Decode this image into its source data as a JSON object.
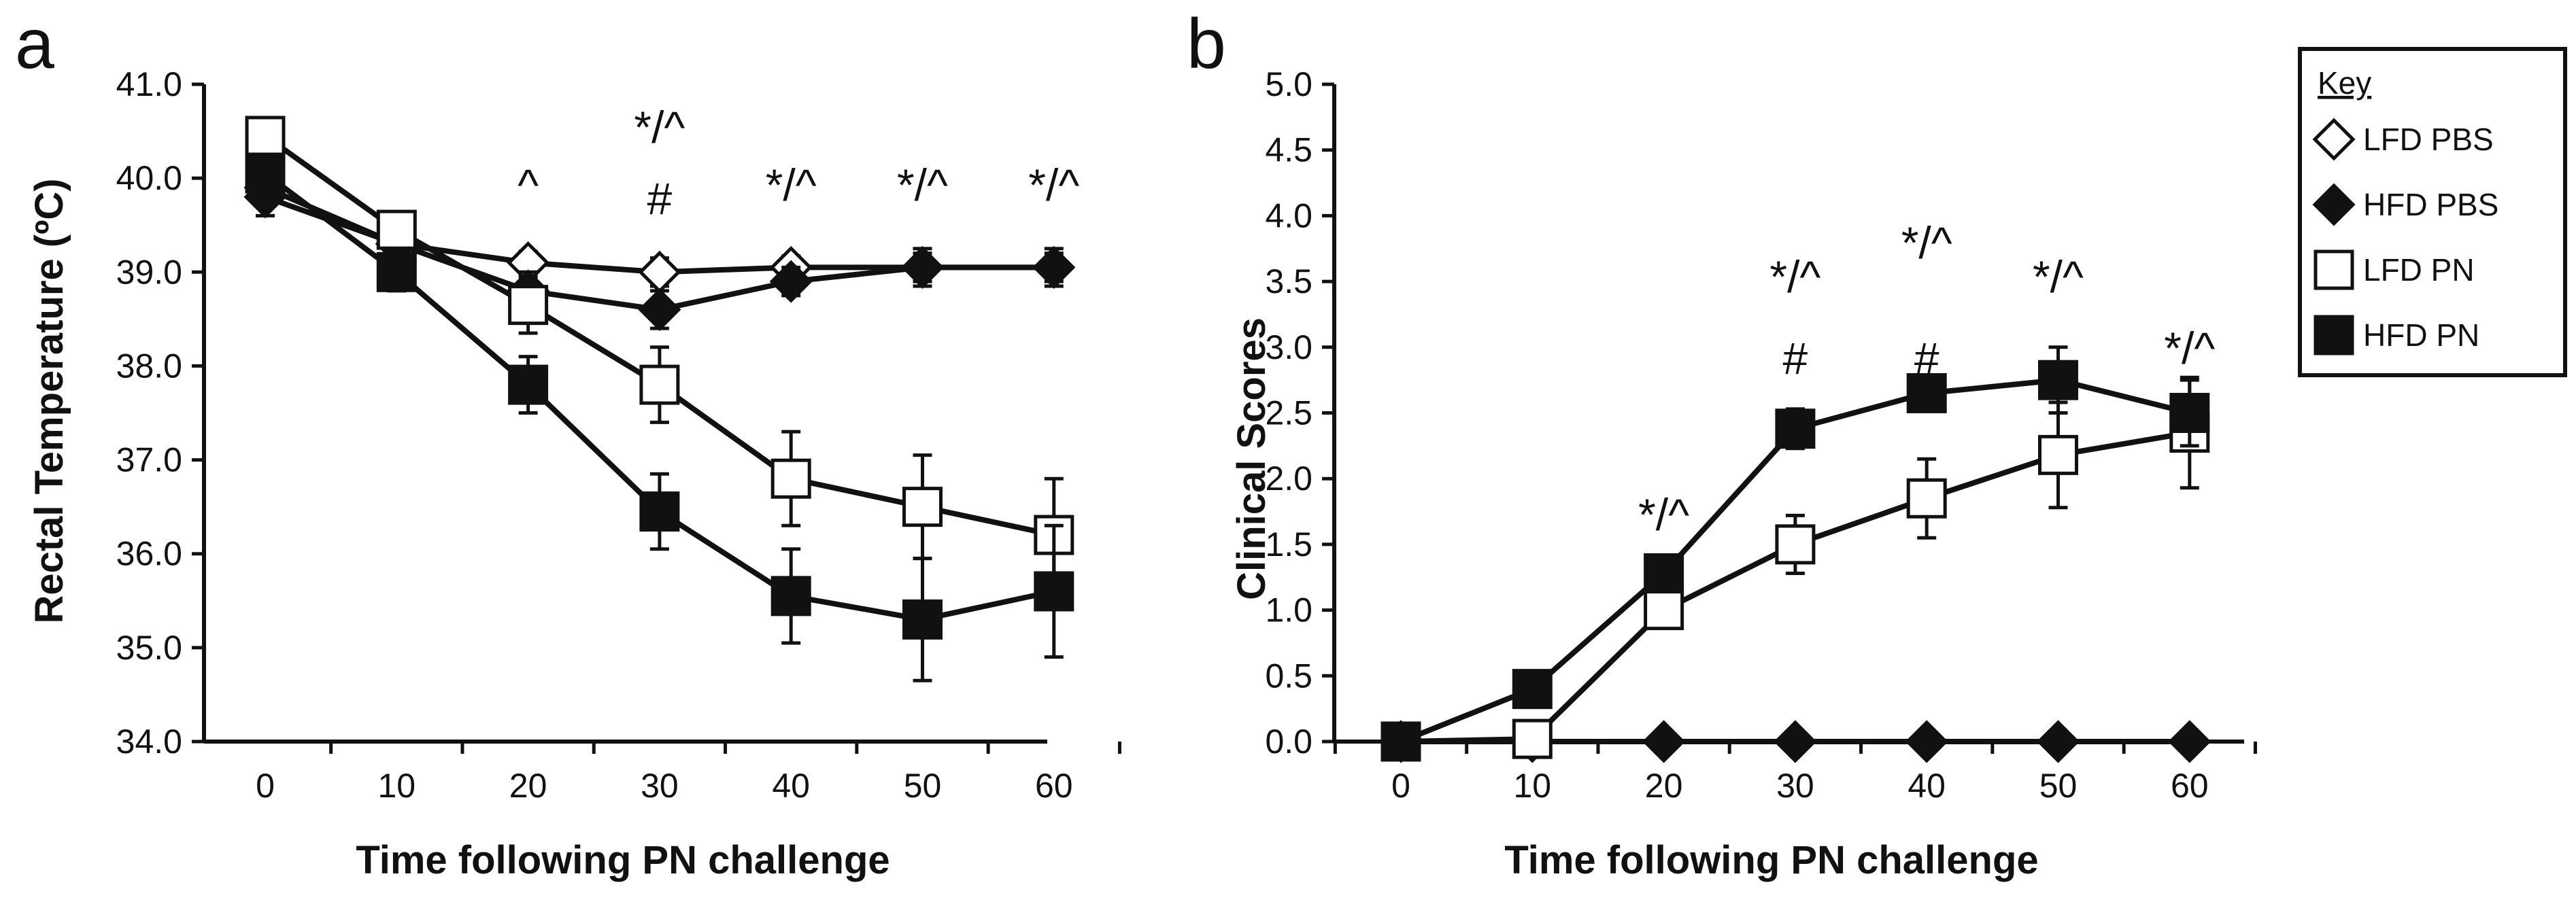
{
  "chart_data": [
    {
      "panel": "a",
      "type": "line",
      "xlabel": "Time following PN challenge",
      "ylabel": "Rectal Temperature (ºC)",
      "x": [
        0,
        10,
        20,
        30,
        40,
        50,
        60
      ],
      "xticks": [
        "0",
        "10",
        "20",
        "30",
        "40",
        "50",
        "60"
      ],
      "ylim": [
        34.0,
        41.0
      ],
      "yticks": [
        "34.0",
        "35.0",
        "36.0",
        "37.0",
        "38.0",
        "39.0",
        "40.0",
        "41.0"
      ],
      "series": [
        {
          "name": "LFD PBS",
          "marker": "diamond-open",
          "values": [
            39.9,
            39.3,
            39.1,
            39.0,
            39.05,
            39.05,
            39.05
          ],
          "errors": [
            0.2,
            0.12,
            0.12,
            0.15,
            0.12,
            0.15,
            0.15
          ]
        },
        {
          "name": "HFD PBS",
          "marker": "diamond-filled",
          "values": [
            39.8,
            39.3,
            38.8,
            38.6,
            38.9,
            39.05,
            39.05
          ],
          "errors": [
            0.2,
            0.15,
            0.2,
            0.2,
            0.15,
            0.2,
            0.2
          ]
        },
        {
          "name": "LFD PN",
          "marker": "square-open",
          "values": [
            40.45,
            39.45,
            38.65,
            37.8,
            36.8,
            36.5,
            36.2
          ],
          "errors": [
            0.1,
            0.15,
            0.3,
            0.4,
            0.5,
            0.55,
            0.6
          ]
        },
        {
          "name": "HFD PN",
          "marker": "square-filled",
          "values": [
            40.05,
            39.0,
            37.8,
            36.45,
            35.55,
            35.3,
            35.6
          ],
          "errors": [
            0.2,
            0.2,
            0.3,
            0.4,
            0.5,
            0.65,
            0.7
          ]
        }
      ],
      "annotations": [
        {
          "x": 20,
          "text": "^"
        },
        {
          "x": 30,
          "text": "*/^"
        },
        {
          "x": 30,
          "text": "#"
        },
        {
          "x": 40,
          "text": "*/^"
        },
        {
          "x": 50,
          "text": "*/^"
        },
        {
          "x": 60,
          "text": "*/^"
        }
      ]
    },
    {
      "panel": "b",
      "type": "line",
      "xlabel": "Time following PN challenge",
      "ylabel": "Clinical Scores",
      "x": [
        0,
        10,
        20,
        30,
        40,
        50,
        60
      ],
      "xticks": [
        "0",
        "10",
        "20",
        "30",
        "40",
        "50",
        "60"
      ],
      "ylim": [
        0.0,
        5.0
      ],
      "yticks": [
        "0.0",
        "0.5",
        "1.0",
        "1.5",
        "2.0",
        "2.5",
        "3.0",
        "3.5",
        "4.0",
        "4.5",
        "5.0"
      ],
      "series": [
        {
          "name": "LFD PBS",
          "marker": "diamond-open",
          "values": [
            0,
            0,
            0,
            0,
            0,
            0,
            0
          ],
          "errors": [
            0,
            0,
            0,
            0,
            0,
            0,
            0
          ]
        },
        {
          "name": "HFD PBS",
          "marker": "diamond-filled",
          "values": [
            0,
            0,
            0,
            0,
            0,
            0,
            0
          ],
          "errors": [
            0,
            0,
            0,
            0,
            0,
            0,
            0
          ]
        },
        {
          "name": "LFD PN",
          "marker": "square-open",
          "values": [
            0,
            0.02,
            1.0,
            1.5,
            1.85,
            2.18,
            2.35
          ],
          "errors": [
            0,
            0,
            0.1,
            0.22,
            0.3,
            0.4,
            0.42
          ]
        },
        {
          "name": "HFD PN",
          "marker": "square-filled",
          "values": [
            0,
            0.4,
            1.28,
            2.38,
            2.65,
            2.75,
            2.5
          ],
          "errors": [
            0,
            0.1,
            0.1,
            0.15,
            0.12,
            0.25,
            0.25
          ]
        }
      ],
      "annotations": [
        {
          "x": 20,
          "text": "*/^"
        },
        {
          "x": 30,
          "text": "*/^"
        },
        {
          "x": 30,
          "text": "#"
        },
        {
          "x": 40,
          "text": "*/^"
        },
        {
          "x": 40,
          "text": "#"
        },
        {
          "x": 50,
          "text": "*/^"
        },
        {
          "x": 60,
          "text": "*/^"
        }
      ]
    }
  ],
  "legend": {
    "title": "Key",
    "items": [
      {
        "label": "LFD PBS",
        "marker": "diamond-open"
      },
      {
        "label": "HFD PBS",
        "marker": "diamond-filled"
      },
      {
        "label": "LFD PN",
        "marker": "square-open"
      },
      {
        "label": "HFD PN",
        "marker": "square-filled"
      }
    ]
  },
  "colors": {
    "line": "#111111",
    "fill": "#111111",
    "background": "#ffffff"
  }
}
